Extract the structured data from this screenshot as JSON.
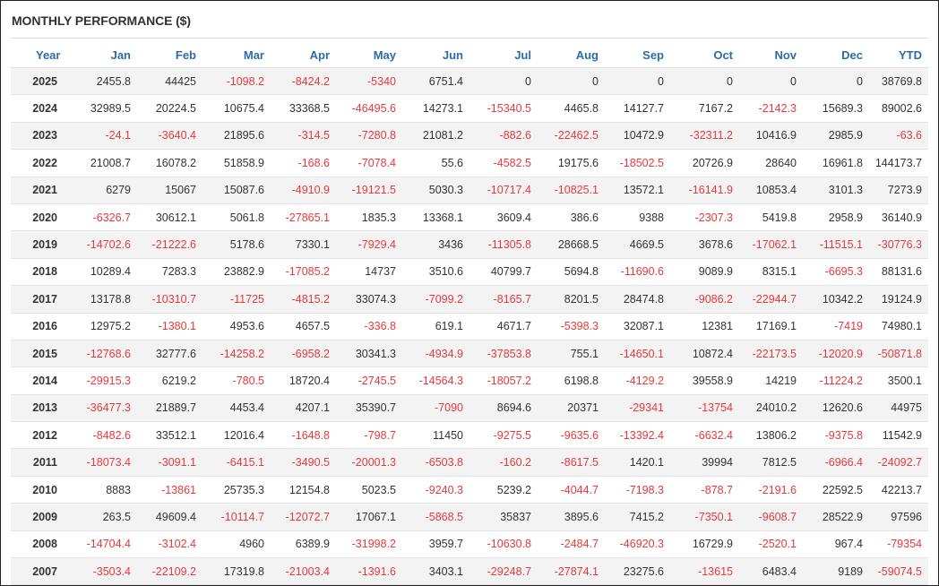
{
  "title": "MONTHLY PERFORMANCE ($)",
  "columns": [
    "Year",
    "Jan",
    "Feb",
    "Mar",
    "Apr",
    "May",
    "Jun",
    "Jul",
    "Aug",
    "Sep",
    "Oct",
    "Nov",
    "Dec",
    "YTD"
  ],
  "colors": {
    "header": "#2c6ca8",
    "negative": "#e8383b",
    "text": "#333333",
    "stripe": "#f3f3f3"
  },
  "rows": [
    [
      "2025",
      "2455.8",
      "44425",
      "-1098.2",
      "-8424.2",
      "-5340",
      "6751.4",
      "0",
      "0",
      "0",
      "0",
      "0",
      "0",
      "38769.8"
    ],
    [
      "2024",
      "32989.5",
      "20224.5",
      "10675.4",
      "33368.5",
      "-46495.6",
      "14273.1",
      "-15340.5",
      "4465.8",
      "14127.7",
      "7167.2",
      "-2142.3",
      "15689.3",
      "89002.6"
    ],
    [
      "2023",
      "-24.1",
      "-3640.4",
      "21895.6",
      "-314.5",
      "-7280.8",
      "21081.2",
      "-882.6",
      "-22462.5",
      "10472.9",
      "-32311.2",
      "10416.9",
      "2985.9",
      "-63.6"
    ],
    [
      "2022",
      "21008.7",
      "16078.2",
      "51858.9",
      "-168.6",
      "-7078.4",
      "55.6",
      "-4582.5",
      "19175.6",
      "-18502.5",
      "20726.9",
      "28640",
      "16961.8",
      "144173.7"
    ],
    [
      "2021",
      "6279",
      "15067",
      "15087.6",
      "-4910.9",
      "-19121.5",
      "5030.3",
      "-10717.4",
      "-10825.1",
      "13572.1",
      "-16141.9",
      "10853.4",
      "3101.3",
      "7273.9"
    ],
    [
      "2020",
      "-6326.7",
      "30612.1",
      "5061.8",
      "-27865.1",
      "1835.3",
      "13368.1",
      "3609.4",
      "386.6",
      "9388",
      "-2307.3",
      "5419.8",
      "2958.9",
      "36140.9"
    ],
    [
      "2019",
      "-14702.6",
      "-21222.6",
      "5178.6",
      "7330.1",
      "-7929.4",
      "3436",
      "-11305.8",
      "28668.5",
      "4669.5",
      "3678.6",
      "-17062.1",
      "-11515.1",
      "-30776.3"
    ],
    [
      "2018",
      "10289.4",
      "7283.3",
      "23882.9",
      "-17085.2",
      "14737",
      "3510.6",
      "40799.7",
      "5694.8",
      "-11690.6",
      "9089.9",
      "8315.1",
      "-6695.3",
      "88131.6"
    ],
    [
      "2017",
      "13178.8",
      "-10310.7",
      "-11725",
      "-4815.2",
      "33074.3",
      "-7099.2",
      "-8165.7",
      "8201.5",
      "28474.8",
      "-9086.2",
      "-22944.7",
      "10342.2",
      "19124.9"
    ],
    [
      "2016",
      "12975.2",
      "-1380.1",
      "4953.6",
      "4657.5",
      "-336.8",
      "619.1",
      "4671.7",
      "-5398.3",
      "32087.1",
      "12381",
      "17169.1",
      "-7419",
      "74980.1"
    ],
    [
      "2015",
      "-12768.6",
      "32777.6",
      "-14258.2",
      "-6958.2",
      "30341.3",
      "-4934.9",
      "-37853.8",
      "755.1",
      "-14650.1",
      "10872.4",
      "-22173.5",
      "-12020.9",
      "-50871.8"
    ],
    [
      "2014",
      "-29915.3",
      "6219.2",
      "-780.5",
      "18720.4",
      "-2745.5",
      "-14564.3",
      "-18057.2",
      "6198.8",
      "-4129.2",
      "39558.9",
      "14219",
      "-11224.2",
      "3500.1"
    ],
    [
      "2013",
      "-36477.3",
      "21889.7",
      "4453.4",
      "4207.1",
      "35390.7",
      "-7090",
      "8694.6",
      "20371",
      "-29341",
      "-13754",
      "24010.2",
      "12620.6",
      "44975"
    ],
    [
      "2012",
      "-8482.6",
      "33512.1",
      "12016.4",
      "-1648.8",
      "-798.7",
      "11450",
      "-9275.5",
      "-9635.6",
      "-13392.4",
      "-6632.4",
      "13806.2",
      "-9375.8",
      "11542.9"
    ],
    [
      "2011",
      "-18073.4",
      "-3091.1",
      "-6415.1",
      "-3490.5",
      "-20001.3",
      "-6503.8",
      "-160.2",
      "-8617.5",
      "1420.1",
      "39994",
      "7812.5",
      "-6966.4",
      "-24092.7"
    ],
    [
      "2010",
      "8883",
      "-13861",
      "25735.3",
      "12154.8",
      "5023.5",
      "-9240.3",
      "5239.2",
      "-4044.7",
      "-7198.3",
      "-878.7",
      "-2191.6",
      "22592.5",
      "42213.7"
    ],
    [
      "2009",
      "263.5",
      "49609.4",
      "-10114.7",
      "-12072.7",
      "17067.1",
      "-5868.5",
      "35837",
      "3895.6",
      "7415.2",
      "-7350.1",
      "-9608.7",
      "28522.9",
      "97596"
    ],
    [
      "2008",
      "-14704.4",
      "-3102.4",
      "4960",
      "6389.9",
      "-31998.2",
      "3959.7",
      "-10630.8",
      "-2484.7",
      "-46920.3",
      "16729.9",
      "-2520.1",
      "967.4",
      "-79354"
    ],
    [
      "2007",
      "-3503.4",
      "-22109.2",
      "17319.8",
      "-21003.4",
      "-1391.6",
      "3403.1",
      "-29248.7",
      "-27874.1",
      "23275.6",
      "-13615",
      "6483.4",
      "9189",
      "-59074.5"
    ]
  ]
}
